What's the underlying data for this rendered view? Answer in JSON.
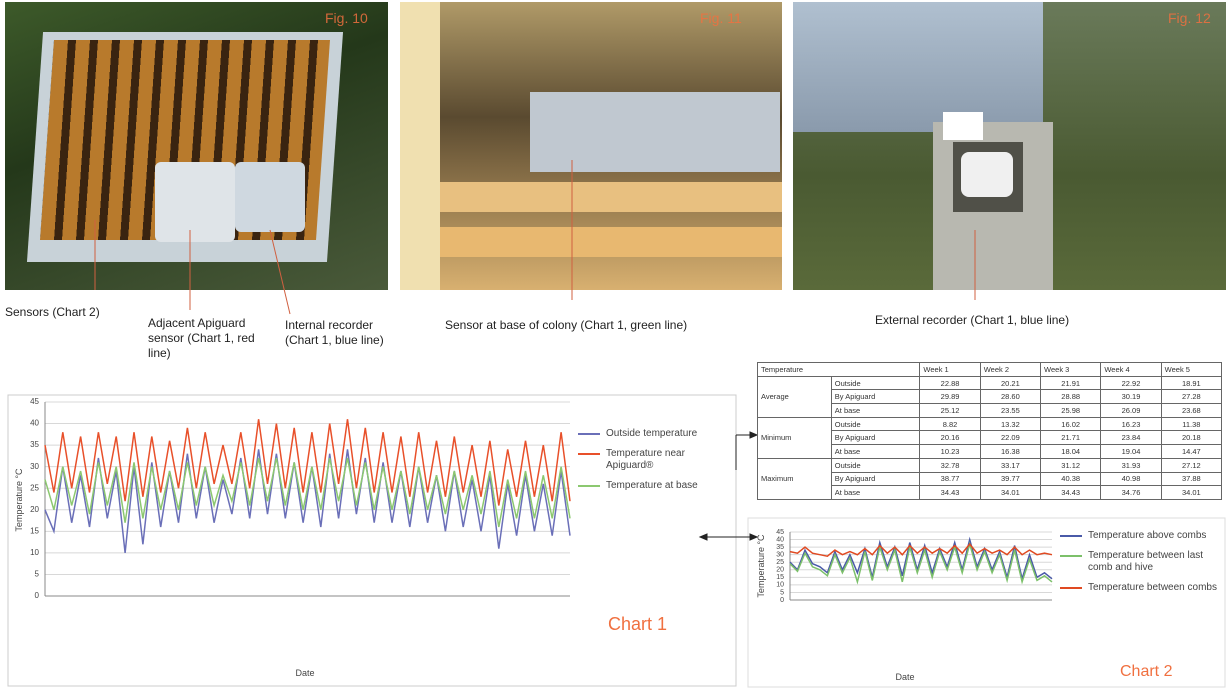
{
  "figures": [
    {
      "label": "Fig. 10"
    },
    {
      "label": "Fig. 11"
    },
    {
      "label": "Fig. 12"
    }
  ],
  "captions": [
    "Sensors (Chart 2)",
    "Adjacent Apiguard sensor (Chart 1, red line)",
    "Internal recorder (Chart 1, blue line)",
    "Sensor at base of colony (Chart 1, green line)",
    "External recorder (Chart 1, blue line)"
  ],
  "table": {
    "header": [
      "Temperature",
      "Week 1",
      "Week 2",
      "Week 3",
      "Week 4",
      "Week 5"
    ],
    "groups": [
      {
        "name": "Average",
        "rows": [
          {
            "label": "Outside",
            "values": [
              "22.88",
              "20.21",
              "21.91",
              "22.92",
              "18.91"
            ]
          },
          {
            "label": "By Apiguard",
            "values": [
              "29.89",
              "28.60",
              "28.88",
              "30.19",
              "27.28"
            ]
          },
          {
            "label": "At base",
            "values": [
              "25.12",
              "23.55",
              "25.98",
              "26.09",
              "23.68"
            ]
          }
        ]
      },
      {
        "name": "Minimum",
        "rows": [
          {
            "label": "Outside",
            "values": [
              "8.82",
              "13.32",
              "16.02",
              "16.23",
              "11.38"
            ]
          },
          {
            "label": "By Apiguard",
            "values": [
              "20.16",
              "22.09",
              "21.71",
              "23.84",
              "20.18"
            ]
          },
          {
            "label": "At base",
            "values": [
              "10.23",
              "16.38",
              "18.04",
              "19.04",
              "14.47"
            ]
          }
        ]
      },
      {
        "name": "Maximum",
        "rows": [
          {
            "label": "Outside",
            "values": [
              "32.78",
              "33.17",
              "31.12",
              "31.93",
              "27.12"
            ]
          },
          {
            "label": "By Apiguard",
            "values": [
              "38.77",
              "39.77",
              "40.38",
              "40.98",
              "37.88"
            ]
          },
          {
            "label": "At base",
            "values": [
              "34.43",
              "34.01",
              "34.43",
              "34.76",
              "34.01"
            ]
          }
        ]
      }
    ]
  },
  "chart_data": [
    {
      "type": "line",
      "title": "Chart 1",
      "title_color": "#f07040",
      "x_label": "Date",
      "y_label": "Temperature °C",
      "categories": [
        null,
        null,
        null,
        null,
        null,
        null,
        null,
        null,
        null,
        null,
        null,
        null,
        null,
        null,
        null,
        null,
        null,
        null,
        null,
        null,
        null,
        null,
        null,
        null,
        null,
        null,
        null,
        null,
        null,
        null,
        null,
        null,
        null,
        null,
        null,
        null,
        null,
        null,
        null,
        null,
        null,
        null,
        null,
        null,
        null,
        null,
        null,
        null,
        null,
        null,
        null,
        null,
        null,
        null,
        null,
        null,
        null,
        null,
        null,
        null
      ],
      "ylim": [
        0,
        45
      ],
      "yticks": [
        0,
        5,
        10,
        15,
        20,
        25,
        30,
        35,
        40,
        45
      ],
      "grid": true,
      "series": [
        {
          "name": "Outside temperature",
          "color": "#6a6fb8",
          "values": [
            20,
            15,
            30,
            17,
            28,
            16,
            32,
            18,
            29,
            10,
            30,
            12,
            31,
            16,
            29,
            17,
            33,
            18,
            30,
            17,
            27,
            19,
            32,
            18,
            34,
            19,
            33,
            18,
            31,
            17,
            30,
            16,
            33,
            18,
            34,
            19,
            32,
            17,
            31,
            17,
            29,
            16,
            30,
            17,
            28,
            15,
            29,
            16,
            27,
            15,
            28,
            11,
            26,
            14,
            28,
            15,
            26,
            14,
            29,
            14
          ]
        },
        {
          "name": "Temperature near Apiguard®",
          "color": "#e8502a",
          "values": [
            35,
            24,
            38,
            25,
            37,
            24,
            38,
            26,
            37,
            22,
            38,
            23,
            37,
            24,
            36,
            25,
            39,
            25,
            38,
            26,
            35,
            26,
            38,
            25,
            41,
            26,
            40,
            25,
            39,
            24,
            38,
            24,
            40,
            26,
            41,
            25,
            39,
            24,
            38,
            24,
            37,
            23,
            38,
            24,
            36,
            23,
            37,
            24,
            35,
            23,
            36,
            21,
            34,
            23,
            36,
            23,
            35,
            22,
            38,
            22
          ]
        },
        {
          "name": "Temperature at base",
          "color": "#8cc870",
          "values": [
            27,
            20,
            30,
            21,
            29,
            19,
            31,
            21,
            30,
            17,
            31,
            18,
            30,
            20,
            29,
            20,
            31,
            21,
            30,
            21,
            28,
            22,
            31,
            21,
            32,
            22,
            32,
            21,
            31,
            20,
            30,
            20,
            32,
            22,
            32,
            21,
            31,
            20,
            30,
            20,
            29,
            19,
            30,
            20,
            28,
            19,
            29,
            20,
            28,
            19,
            29,
            16,
            27,
            18,
            29,
            18,
            28,
            18,
            30,
            18
          ]
        }
      ]
    },
    {
      "type": "line",
      "title": "Chart 2",
      "title_color": "#f07040",
      "x_label": "Date",
      "y_label": "Temperature °C",
      "categories": [
        null,
        null,
        null,
        null,
        null,
        null,
        null,
        null,
        null,
        null,
        null,
        null,
        null,
        null,
        null,
        null,
        null,
        null,
        null,
        null,
        null,
        null,
        null,
        null,
        null,
        null,
        null,
        null,
        null,
        null,
        null,
        null,
        null,
        null,
        null,
        null
      ],
      "ylim": [
        0,
        45
      ],
      "yticks": [
        0,
        5,
        10,
        15,
        20,
        25,
        30,
        35,
        40,
        45
      ],
      "grid": true,
      "series": [
        {
          "name": "Temperature above combs",
          "color": "#4a5aa8",
          "values": [
            25,
            20,
            33,
            24,
            22,
            18,
            32,
            20,
            30,
            18,
            34,
            15,
            38,
            22,
            35,
            16,
            38,
            20,
            36,
            18,
            34,
            22,
            38,
            20,
            40,
            22,
            34,
            20,
            32,
            15,
            36,
            14,
            30,
            15,
            18,
            14
          ]
        },
        {
          "name": "Temperature between last comb and hive",
          "color": "#7cc06a",
          "values": [
            24,
            19,
            31,
            22,
            20,
            16,
            30,
            18,
            28,
            12,
            32,
            13,
            35,
            20,
            33,
            12,
            35,
            18,
            33,
            15,
            32,
            20,
            35,
            18,
            37,
            20,
            32,
            18,
            30,
            13,
            33,
            12,
            27,
            13,
            16,
            12
          ]
        },
        {
          "name": "Temperature between combs",
          "color": "#e04a22",
          "values": [
            32,
            31,
            35,
            31,
            30,
            29,
            33,
            30,
            32,
            30,
            34,
            30,
            36,
            31,
            35,
            30,
            36,
            31,
            35,
            31,
            34,
            31,
            36,
            31,
            37,
            31,
            34,
            31,
            33,
            30,
            35,
            30,
            33,
            30,
            31,
            30
          ]
        }
      ]
    }
  ]
}
